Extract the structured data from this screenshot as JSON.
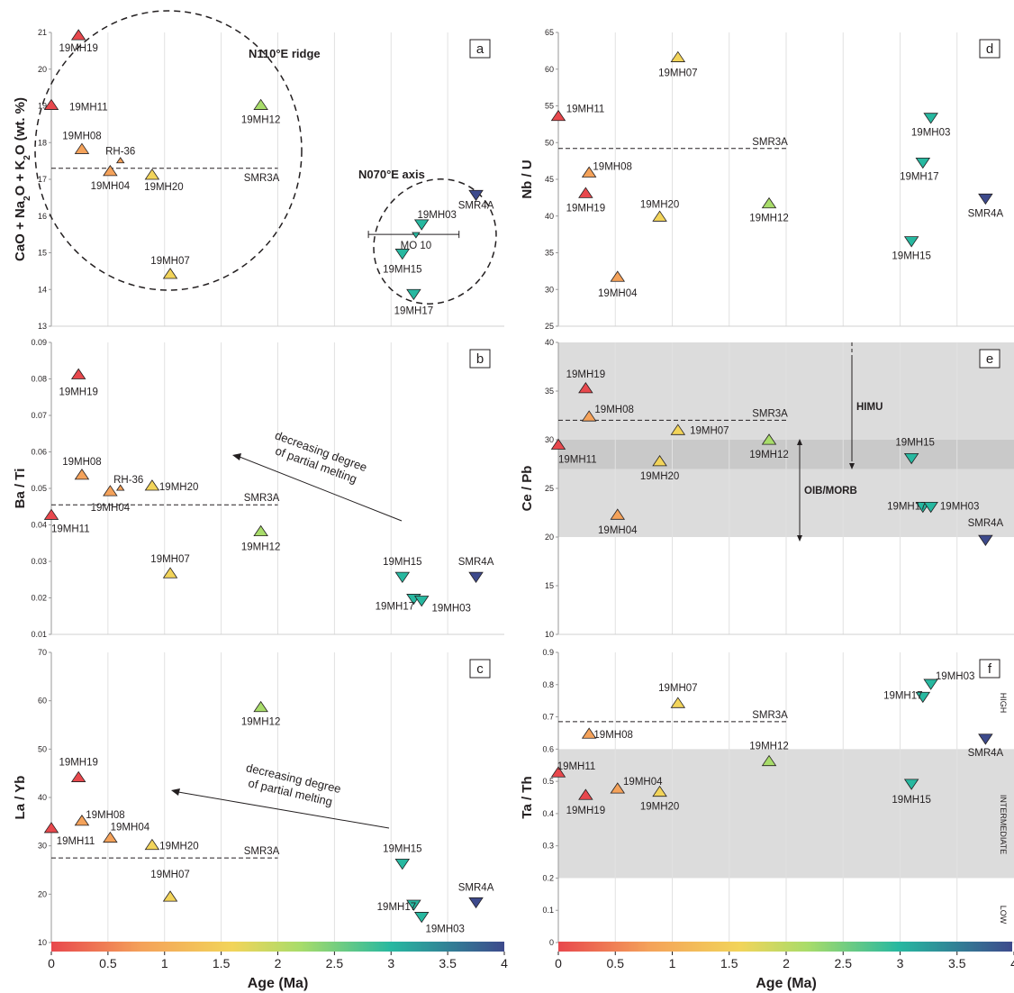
{
  "colors": {
    "c0": "#e8484d",
    "c1": "#f4a25a",
    "c2": "#f2d45a",
    "c3": "#a8dc6a",
    "c4": "#27b8a0",
    "c5": "#3d4a8c"
  },
  "age_ticks": [
    "0",
    "0.5",
    "1",
    "1.5",
    "2",
    "2.5",
    "3",
    "3.5",
    "4"
  ],
  "chart_data": [
    {
      "id": "a",
      "type": "scatter",
      "xlabel": "",
      "ylabel": "CaO + Na2O + K2O (wt. %)",
      "xlim": [
        0,
        4
      ],
      "ylim": [
        13,
        21
      ],
      "yticks": [
        "13",
        "14",
        "15",
        "16",
        "17",
        "18",
        "19",
        "20",
        "21"
      ],
      "ref_label": "SMR3A",
      "ref_value": 17.3,
      "ref_xrange": [
        0,
        2
      ],
      "points": [
        {
          "label": "19MH19",
          "x": 0.24,
          "y": 20.9,
          "marker": "up",
          "color": "c0"
        },
        {
          "label": "19MH11",
          "x": 0.0,
          "y": 19.0,
          "marker": "up",
          "color": "c0"
        },
        {
          "label": "19MH08",
          "x": 0.27,
          "y": 17.8,
          "marker": "up",
          "color": "c1"
        },
        {
          "label": "RH-36",
          "x": 0.61,
          "y": 17.5,
          "marker": "up-small",
          "color": "c1"
        },
        {
          "label": "19MH04",
          "x": 0.52,
          "y": 17.2,
          "marker": "up",
          "color": "c1"
        },
        {
          "label": "19MH20",
          "x": 0.89,
          "y": 17.1,
          "marker": "up",
          "color": "c2"
        },
        {
          "label": "19MH12",
          "x": 1.85,
          "y": 19.0,
          "marker": "up",
          "color": "c3"
        },
        {
          "label": "19MH07",
          "x": 1.05,
          "y": 14.4,
          "marker": "up",
          "color": "c2"
        },
        {
          "label": "19MH03",
          "x": 3.27,
          "y": 15.8,
          "marker": "down",
          "color": "c4"
        },
        {
          "label": "SMR4A",
          "x": 3.75,
          "y": 16.6,
          "marker": "down",
          "color": "c5"
        },
        {
          "label": "MO 10",
          "x": 3.22,
          "y": 15.5,
          "marker": "down-small",
          "color": "c4"
        },
        {
          "label": "19MH15",
          "x": 3.1,
          "y": 15.0,
          "marker": "down",
          "color": "c4"
        },
        {
          "label": "19MH17",
          "x": 3.2,
          "y": 13.9,
          "marker": "down",
          "color": "c4"
        }
      ],
      "annotations": [
        "N110°E ridge",
        "N070°E axis"
      ]
    },
    {
      "id": "b",
      "type": "scatter",
      "xlabel": "",
      "ylabel": "Ba / Ti",
      "xlim": [
        0,
        4
      ],
      "ylim": [
        0.01,
        0.09
      ],
      "yticks": [
        "0.01",
        "0.02",
        "0.03",
        "0.04",
        "0.05",
        "0.06",
        "0.07",
        "0.08",
        "0.09"
      ],
      "ref_label": "SMR3A",
      "ref_value": 0.0455,
      "ref_xrange": [
        0,
        2
      ],
      "points": [
        {
          "label": "19MH19",
          "x": 0.24,
          "y": 0.081,
          "marker": "up",
          "color": "c0"
        },
        {
          "label": "19MH08",
          "x": 0.27,
          "y": 0.0535,
          "marker": "up",
          "color": "c1"
        },
        {
          "label": "RH-36",
          "x": 0.61,
          "y": 0.05,
          "marker": "up-small",
          "color": "c1"
        },
        {
          "label": "19MH04",
          "x": 0.52,
          "y": 0.049,
          "marker": "up",
          "color": "c1"
        },
        {
          "label": "19MH20",
          "x": 0.89,
          "y": 0.0505,
          "marker": "up",
          "color": "c2"
        },
        {
          "label": "19MH11",
          "x": 0.0,
          "y": 0.0425,
          "marker": "up",
          "color": "c0"
        },
        {
          "label": "19MH12",
          "x": 1.85,
          "y": 0.038,
          "marker": "up",
          "color": "c3"
        },
        {
          "label": "19MH07",
          "x": 1.05,
          "y": 0.0265,
          "marker": "up",
          "color": "c2"
        },
        {
          "label": "19MH15",
          "x": 3.1,
          "y": 0.026,
          "marker": "down",
          "color": "c4"
        },
        {
          "label": "SMR4A",
          "x": 3.75,
          "y": 0.026,
          "marker": "down",
          "color": "c5"
        },
        {
          "label": "19MH17",
          "x": 3.2,
          "y": 0.02,
          "marker": "down",
          "color": "c4"
        },
        {
          "label": "19MH03",
          "x": 3.27,
          "y": 0.0195,
          "marker": "down",
          "color": "c4"
        }
      ],
      "annotations": [
        "decreasing degree",
        "of partial melting"
      ]
    },
    {
      "id": "c",
      "type": "scatter",
      "xlabel": "Age (Ma)",
      "ylabel": "La / Yb",
      "xlim": [
        0,
        4
      ],
      "ylim": [
        10,
        70
      ],
      "yticks": [
        "10",
        "20",
        "30",
        "40",
        "50",
        "60",
        "70"
      ],
      "ref_label": "SMR3A",
      "ref_value": 27.5,
      "ref_xrange": [
        0,
        2
      ],
      "points": [
        {
          "label": "19MH12",
          "x": 1.85,
          "y": 58.5,
          "marker": "up",
          "color": "c3"
        },
        {
          "label": "19MH19",
          "x": 0.24,
          "y": 44.0,
          "marker": "up",
          "color": "c0"
        },
        {
          "label": "19MH08",
          "x": 0.27,
          "y": 35.0,
          "marker": "up",
          "color": "c1"
        },
        {
          "label": "19MH11",
          "x": 0.0,
          "y": 33.5,
          "marker": "up",
          "color": "c0"
        },
        {
          "label": "19MH04",
          "x": 0.52,
          "y": 31.5,
          "marker": "up",
          "color": "c1"
        },
        {
          "label": "19MH20",
          "x": 0.89,
          "y": 30.0,
          "marker": "up",
          "color": "c2"
        },
        {
          "label": "19MH07",
          "x": 1.05,
          "y": 19.3,
          "marker": "up",
          "color": "c2"
        },
        {
          "label": "19MH15",
          "x": 3.1,
          "y": 26.5,
          "marker": "down",
          "color": "c4"
        },
        {
          "label": "SMR4A",
          "x": 3.75,
          "y": 18.5,
          "marker": "down",
          "color": "c5"
        },
        {
          "label": "19MH17",
          "x": 3.2,
          "y": 18.0,
          "marker": "down",
          "color": "c4"
        },
        {
          "label": "19MH03",
          "x": 3.27,
          "y": 15.5,
          "marker": "down",
          "color": "c4"
        }
      ],
      "annotations": [
        "decreasing degree",
        "of partial melting"
      ]
    },
    {
      "id": "d",
      "type": "scatter",
      "xlabel": "",
      "ylabel": "Nb / U",
      "xlim": [
        0,
        4
      ],
      "ylim": [
        25,
        65
      ],
      "yticks": [
        "25",
        "30",
        "35",
        "40",
        "45",
        "50",
        "55",
        "60",
        "65"
      ],
      "ref_label": "SMR3A",
      "ref_value": 49.2,
      "ref_xrange": [
        0,
        2
      ],
      "points": [
        {
          "label": "19MH07",
          "x": 1.05,
          "y": 61.5,
          "marker": "up",
          "color": "c2"
        },
        {
          "label": "19MH11",
          "x": 0.0,
          "y": 53.5,
          "marker": "up",
          "color": "c0"
        },
        {
          "label": "19MH08",
          "x": 0.27,
          "y": 45.8,
          "marker": "up",
          "color": "c1"
        },
        {
          "label": "19MH19",
          "x": 0.24,
          "y": 43.0,
          "marker": "up",
          "color": "c0"
        },
        {
          "label": "19MH20",
          "x": 0.89,
          "y": 39.8,
          "marker": "up",
          "color": "c2"
        },
        {
          "label": "19MH12",
          "x": 1.85,
          "y": 41.6,
          "marker": "up",
          "color": "c3"
        },
        {
          "label": "19MH04",
          "x": 0.52,
          "y": 31.6,
          "marker": "up",
          "color": "c1"
        },
        {
          "label": "19MH03",
          "x": 3.27,
          "y": 53.5,
          "marker": "down",
          "color": "c4"
        },
        {
          "label": "19MH17",
          "x": 3.2,
          "y": 47.4,
          "marker": "down",
          "color": "c4"
        },
        {
          "label": "SMR4A",
          "x": 3.75,
          "y": 42.5,
          "marker": "down",
          "color": "c5"
        },
        {
          "label": "19MH15",
          "x": 3.1,
          "y": 36.7,
          "marker": "down",
          "color": "c4"
        }
      ]
    },
    {
      "id": "e",
      "type": "scatter",
      "xlabel": "",
      "ylabel": "Ce / Pb",
      "xlim": [
        0,
        4
      ],
      "ylim": [
        10,
        40
      ],
      "yticks": [
        "10",
        "15",
        "20",
        "25",
        "30",
        "35",
        "40"
      ],
      "ref_label": "SMR3A",
      "ref_value": 32.0,
      "ref_xrange": [
        0,
        2
      ],
      "bands": [
        {
          "from": 20,
          "to": 40,
          "shade": "light"
        },
        {
          "from": 27,
          "to": 30,
          "shade": "dark"
        }
      ],
      "points": [
        {
          "label": "19MH19",
          "x": 0.24,
          "y": 35.2,
          "marker": "up",
          "color": "c0"
        },
        {
          "label": "19MH08",
          "x": 0.27,
          "y": 32.3,
          "marker": "up",
          "color": "c1"
        },
        {
          "label": "19MH11",
          "x": 0.0,
          "y": 29.4,
          "marker": "up",
          "color": "c0"
        },
        {
          "label": "19MH07",
          "x": 1.05,
          "y": 30.9,
          "marker": "up",
          "color": "c2"
        },
        {
          "label": "19MH12",
          "x": 1.85,
          "y": 29.9,
          "marker": "up",
          "color": "c3"
        },
        {
          "label": "19MH20",
          "x": 0.89,
          "y": 27.7,
          "marker": "up",
          "color": "c2"
        },
        {
          "label": "19MH04",
          "x": 0.52,
          "y": 22.2,
          "marker": "up",
          "color": "c1"
        },
        {
          "label": "19MH15",
          "x": 3.1,
          "y": 28.2,
          "marker": "down",
          "color": "c4"
        },
        {
          "label": "19MH17",
          "x": 3.2,
          "y": 23.2,
          "marker": "down",
          "color": "c4"
        },
        {
          "label": "19MH03",
          "x": 3.27,
          "y": 23.2,
          "marker": "down",
          "color": "c4"
        },
        {
          "label": "SMR4A",
          "x": 3.75,
          "y": 19.8,
          "marker": "down",
          "color": "c5"
        }
      ],
      "annotations": [
        "HIMU",
        "OIB/MORB"
      ]
    },
    {
      "id": "f",
      "type": "scatter",
      "xlabel": "Age (Ma)",
      "ylabel": "Ta / Th",
      "xlim": [
        0,
        4
      ],
      "ylim": [
        0,
        0.9
      ],
      "yticks": [
        "0",
        "0.1",
        "0.2",
        "0.3",
        "0.4",
        "0.5",
        "0.6",
        "0.7",
        "0.8",
        "0.9"
      ],
      "ref_label": "SMR3A",
      "ref_value": 0.685,
      "ref_xrange": [
        0,
        2
      ],
      "bands": [
        {
          "from": 0.2,
          "to": 0.6,
          "shade": "light"
        }
      ],
      "points": [
        {
          "label": "19MH07",
          "x": 1.05,
          "y": 0.74,
          "marker": "up",
          "color": "c2"
        },
        {
          "label": "19MH08",
          "x": 0.27,
          "y": 0.645,
          "marker": "up",
          "color": "c1"
        },
        {
          "label": "19MH12",
          "x": 1.85,
          "y": 0.56,
          "marker": "up",
          "color": "c3"
        },
        {
          "label": "19MH11",
          "x": 0.0,
          "y": 0.525,
          "marker": "up",
          "color": "c0"
        },
        {
          "label": "19MH04",
          "x": 0.52,
          "y": 0.475,
          "marker": "up",
          "color": "c1"
        },
        {
          "label": "19MH19",
          "x": 0.24,
          "y": 0.455,
          "marker": "up",
          "color": "c0"
        },
        {
          "label": "19MH20",
          "x": 0.89,
          "y": 0.465,
          "marker": "up",
          "color": "c2"
        },
        {
          "label": "19MH03",
          "x": 3.27,
          "y": 0.805,
          "marker": "down",
          "color": "c4"
        },
        {
          "label": "19MH17",
          "x": 3.2,
          "y": 0.765,
          "marker": "down",
          "color": "c4"
        },
        {
          "label": "SMR4A",
          "x": 3.75,
          "y": 0.635,
          "marker": "down",
          "color": "c5"
        },
        {
          "label": "19MH15",
          "x": 3.1,
          "y": 0.495,
          "marker": "down",
          "color": "c4"
        }
      ],
      "annotations": [
        "HIGH",
        "INTERMEDIATE",
        "LOW"
      ]
    }
  ]
}
